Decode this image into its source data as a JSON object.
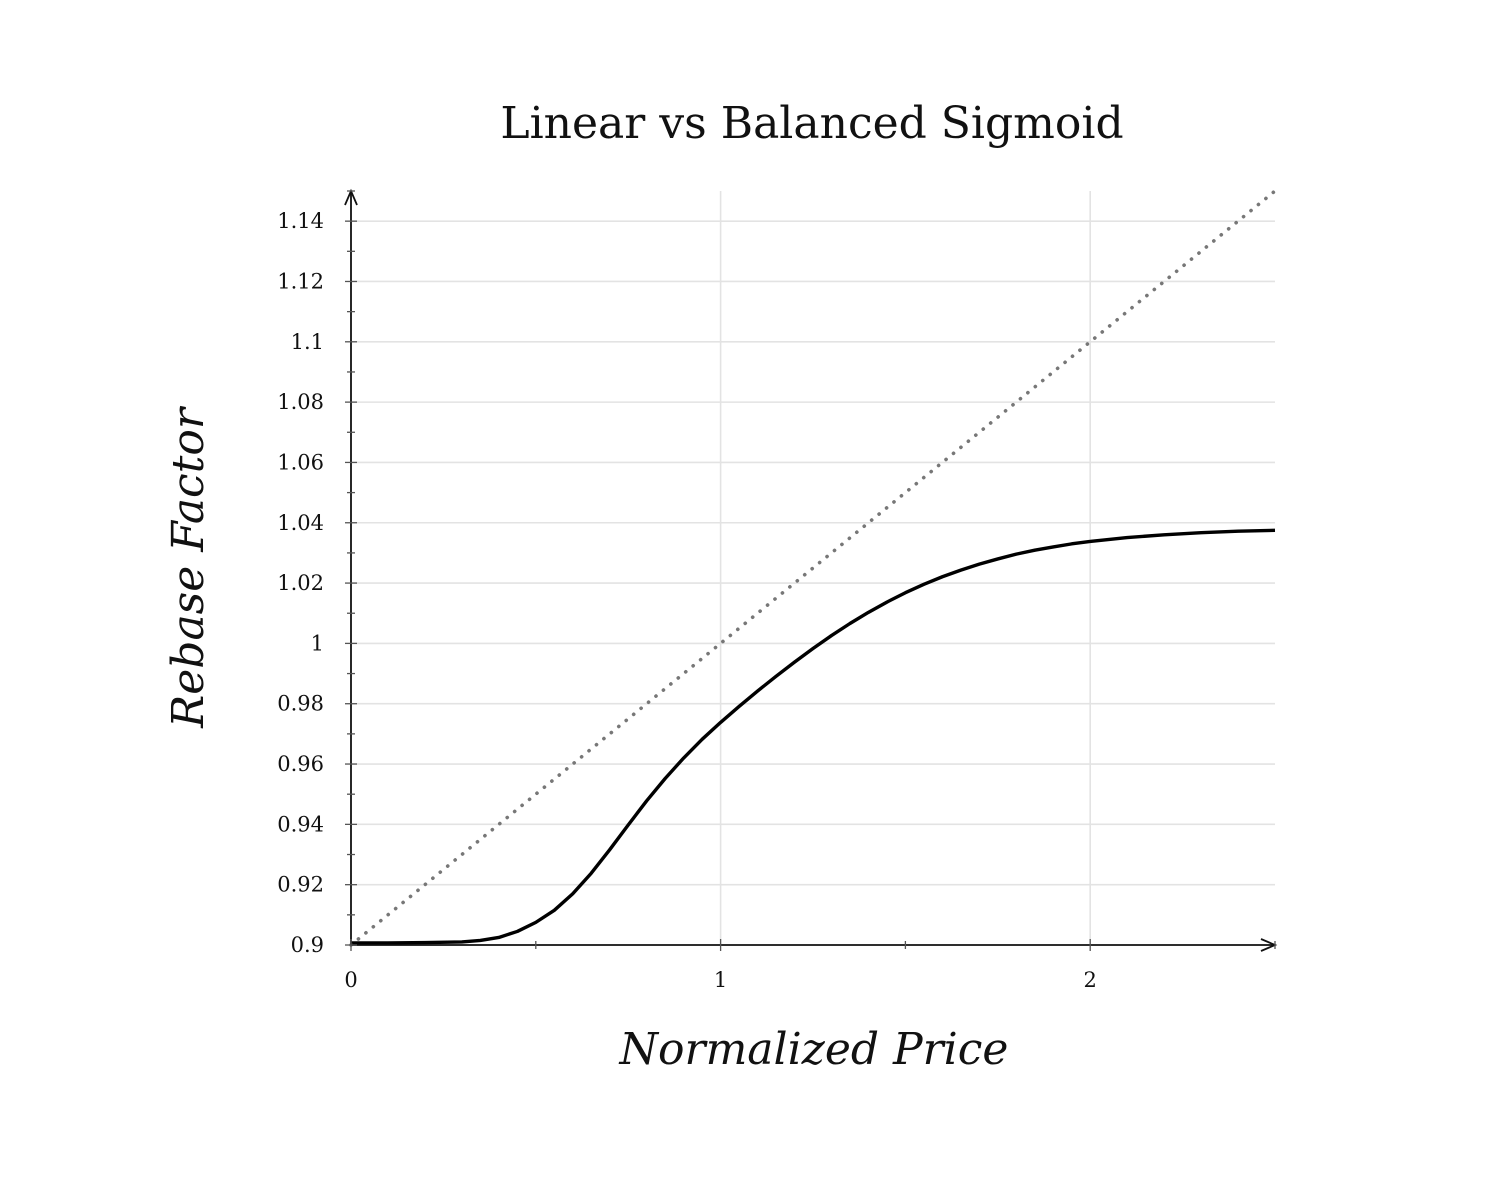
{
  "chart_data": {
    "type": "line",
    "title": "Linear vs Balanced Sigmoid",
    "xlabel": "Normalized Price",
    "ylabel": "Rebase Factor",
    "xlim": [
      0,
      2.5
    ],
    "ylim": [
      0.9,
      1.15
    ],
    "x_ticks": [
      {
        "value": 0,
        "label": "0"
      },
      {
        "value": 1,
        "label": "1"
      },
      {
        "value": 2,
        "label": "2"
      }
    ],
    "y_ticks": [
      {
        "value": 0.9,
        "label": "0.9"
      },
      {
        "value": 0.92,
        "label": "0.92"
      },
      {
        "value": 0.94,
        "label": "0.94"
      },
      {
        "value": 0.96,
        "label": "0.96"
      },
      {
        "value": 0.98,
        "label": "0.98"
      },
      {
        "value": 1.0,
        "label": "1"
      },
      {
        "value": 1.02,
        "label": "1.02"
      },
      {
        "value": 1.04,
        "label": "1.04"
      },
      {
        "value": 1.06,
        "label": "1.06"
      },
      {
        "value": 1.08,
        "label": "1.08"
      },
      {
        "value": 1.1,
        "label": "1.1"
      },
      {
        "value": 1.12,
        "label": "1.12"
      },
      {
        "value": 1.14,
        "label": "1.14"
      }
    ],
    "grid": true,
    "legend": "none",
    "series": [
      {
        "style": "solid",
        "color": "#000000",
        "x": [
          0,
          0.1,
          0.2,
          0.3,
          0.35,
          0.4,
          0.45,
          0.5,
          0.55,
          0.6,
          0.65,
          0.7,
          0.75,
          0.8,
          0.85,
          0.9,
          0.95,
          1.0,
          1.05,
          1.1,
          1.15,
          1.2,
          1.25,
          1.3,
          1.35,
          1.4,
          1.45,
          1.5,
          1.55,
          1.6,
          1.65,
          1.7,
          1.75,
          1.8,
          1.85,
          1.9,
          1.95,
          2.0,
          2.1,
          2.2,
          2.3,
          2.4,
          2.5
        ],
        "y": [
          0.9007,
          0.9007,
          0.9008,
          0.901,
          0.9015,
          0.9025,
          0.9045,
          0.9075,
          0.9115,
          0.917,
          0.9238,
          0.9316,
          0.9398,
          0.9478,
          0.9552,
          0.962,
          0.9682,
          0.9738,
          0.9791,
          0.9842,
          0.9891,
          0.9938,
          0.9983,
          1.0026,
          1.0066,
          1.0103,
          1.0137,
          1.0168,
          1.0196,
          1.0221,
          1.0243,
          1.0263,
          1.028,
          1.0296,
          1.0309,
          1.032,
          1.033,
          1.0338,
          1.0351,
          1.036,
          1.0367,
          1.0372,
          1.0375
        ]
      },
      {
        "style": "dotted",
        "color": "#777777",
        "x": [
          0,
          2.5
        ],
        "y": [
          0.9,
          1.15
        ]
      }
    ]
  }
}
